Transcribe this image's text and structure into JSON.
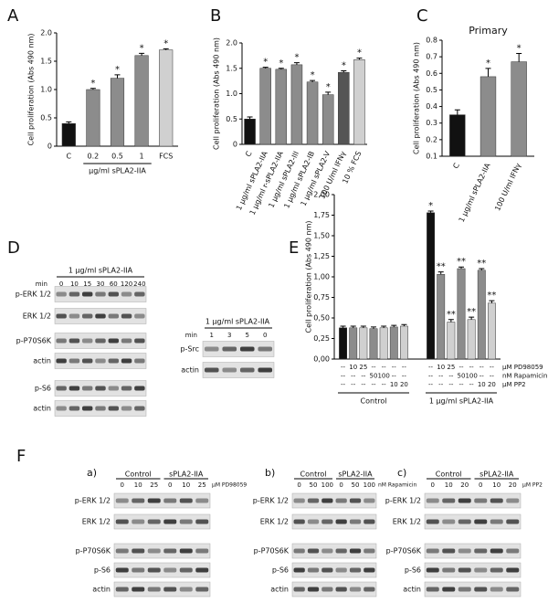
{
  "chart_data": [
    {
      "type": "bar",
      "panel": "A",
      "ylabel": "Cell proliferation (Abs 490 nm)",
      "categories": [
        "C",
        "0.2",
        "0.5",
        "1",
        "FCS"
      ],
      "group_label": "µg/ml sPLA2-IIA",
      "values": [
        0.4,
        1.0,
        1.2,
        1.6,
        1.7
      ],
      "errors": [
        0.03,
        0.02,
        0.06,
        0.04,
        0.02
      ],
      "colors": [
        "#111111",
        "#8c8c8c",
        "#8c8c8c",
        "#8c8c8c",
        "#d0d0d0"
      ],
      "annotations": [
        null,
        "*",
        "*",
        "*",
        "*"
      ],
      "ylim": [
        0,
        2.0
      ],
      "yticks": [
        0,
        0.5,
        {
          "value": 1,
          "label": "1.0"
        },
        1.5,
        {
          "value": 2,
          "label": "2.0"
        }
      ]
    },
    {
      "type": "bar",
      "panel": "B",
      "ylabel": "Cell proliferation (Abs 490 nm)",
      "categories": [
        "C",
        "1 µg/ml sPLA2-IIA",
        "1 µg/ml r-sPLA2-IIA",
        "1 µg/ml sPLA2-III",
        "1 µg/ml sPLA2-IB",
        "1 µg/ml sPLA2-V",
        "100 U/ml IFNγ",
        "10 % FCS"
      ],
      "values": [
        0.5,
        1.5,
        1.48,
        1.57,
        1.23,
        0.98,
        1.42,
        1.67
      ],
      "errors": [
        0.04,
        0.02,
        0.02,
        0.04,
        0.03,
        0.05,
        0.03,
        0.03
      ],
      "colors": [
        "#111111",
        "#8c8c8c",
        "#8c8c8c",
        "#8c8c8c",
        "#8c8c8c",
        "#8c8c8c",
        "#555555",
        "#d0d0d0"
      ],
      "annotations": [
        null,
        "*",
        "*",
        "*",
        "*",
        "*",
        "*",
        "*"
      ],
      "ylim": [
        0,
        2.0
      ],
      "yticks": [
        0,
        0.5,
        {
          "value": 1,
          "label": "1.0"
        },
        1.5,
        {
          "value": 2,
          "label": "2.0"
        }
      ]
    },
    {
      "type": "bar",
      "panel": "C",
      "title": "Primary",
      "ylabel": "Cell proliferation (Abs 490 nm)",
      "categories": [
        "C",
        "1 µg/ml sPLA2-IIA",
        "100 U/ml IFNγ"
      ],
      "values": [
        0.35,
        0.58,
        0.67
      ],
      "errors": [
        0.03,
        0.05,
        0.05
      ],
      "colors": [
        "#111111",
        "#8c8c8c",
        "#8c8c8c"
      ],
      "annotations": [
        null,
        "*",
        "*"
      ],
      "ylim": [
        0.1,
        0.8
      ],
      "yticks": [
        0.1,
        0.2,
        0.3,
        0.4,
        0.5,
        0.6,
        0.7,
        0.8
      ]
    },
    {
      "type": "bar",
      "panel": "E",
      "ylabel": "Cell proliferation (Abs 490 nm)",
      "values": [
        0.38,
        0.38,
        0.38,
        0.37,
        0.38,
        0.39,
        0.4,
        1.78,
        1.03,
        0.45,
        1.1,
        0.48,
        1.08,
        0.68
      ],
      "errors": [
        0.02,
        0.02,
        0.02,
        0.02,
        0.02,
        0.02,
        0.02,
        0.02,
        0.03,
        0.03,
        0.02,
        0.03,
        0.02,
        0.03
      ],
      "colors": [
        "#111111",
        "#8c8c8c",
        "#d0d0d0",
        "#8c8c8c",
        "#d0d0d0",
        "#8c8c8c",
        "#d0d0d0",
        "#111111",
        "#8c8c8c",
        "#d0d0d0",
        "#8c8c8c",
        "#d0d0d0",
        "#8c8c8c",
        "#d0d0d0"
      ],
      "annotations": [
        null,
        null,
        null,
        null,
        null,
        null,
        null,
        "*",
        "**",
        "**",
        "**",
        "**",
        "**",
        "**"
      ],
      "conditions": [
        {
          "name": "µM PD98059",
          "labels": [
            "--",
            10,
            25,
            "--",
            "--",
            "--",
            "--",
            "--",
            10,
            25,
            "--",
            "--",
            "--",
            "--"
          ]
        },
        {
          "name": "nM Rapamicin",
          "labels": [
            "--",
            "--",
            "--",
            50,
            100,
            "--",
            "--",
            "--",
            "--",
            "--",
            50,
            100,
            "--",
            "--"
          ]
        },
        {
          "name": "µM PP2",
          "labels": [
            "--",
            "--",
            "--",
            "--",
            "--",
            10,
            20,
            "--",
            "--",
            "--",
            "--",
            "--",
            10,
            20
          ]
        }
      ],
      "groups": [
        "Control",
        "1 µg/ml sPLA2-IIA"
      ],
      "ylim": [
        0,
        2.0
      ],
      "yticks": [
        {
          "value": 0,
          "label": "0,00"
        },
        {
          "value": 0.25,
          "label": "0,25"
        },
        {
          "value": 0.5,
          "label": "0,50"
        },
        {
          "value": 0.75,
          "label": "0,75"
        },
        {
          "value": 1,
          "label": "1,00"
        },
        {
          "value": 1.25,
          "label": "1,25"
        },
        {
          "value": 1.5,
          "label": "1,50"
        },
        {
          "value": 1.75,
          "label": "1,75"
        },
        {
          "value": 2,
          "label": "2,00"
        }
      ]
    }
  ],
  "blots": {
    "D": {
      "panel": "D",
      "left": {
        "header": "1 µg/ml sPLA2-IIA",
        "unit": "min",
        "lanes": [
          0,
          10,
          15,
          30,
          60,
          120,
          240
        ],
        "rows": [
          "p-ERK 1/2",
          "ERK 1/2",
          "p-P70S6K",
          "actin",
          "p-S6",
          "actin"
        ]
      },
      "right": {
        "header": "1 µg/ml sPLA2-IIA",
        "unit": "min",
        "lanes": [
          1,
          3,
          5,
          0
        ],
        "rows": [
          "p-Src",
          "actin"
        ]
      }
    },
    "F": {
      "panel": "F",
      "subpanels": [
        {
          "tag": "a)",
          "groups": [
            "Control",
            "sPLA2-IIA"
          ],
          "treatment": "µM PD98059",
          "lanes": [
            0,
            10,
            25,
            0,
            10,
            25
          ],
          "rows": [
            "p-ERK 1/2",
            "ERK 1/2",
            "p-P70S6K",
            "p-S6",
            "actin"
          ]
        },
        {
          "tag": "b)",
          "groups": [
            "Control",
            "sPLA2-IIA"
          ],
          "treatment": "nM Rapamicin",
          "lanes": [
            0,
            50,
            100,
            0,
            50,
            100
          ],
          "rows": [
            "p-ERK 1/2",
            "ERK 1/2",
            "p-P70S6K",
            "p-S6",
            "actin"
          ]
        },
        {
          "tag": "c)",
          "groups": [
            "Control",
            "sPLA2-IIA"
          ],
          "treatment": "µM PP2",
          "lanes": [
            0,
            10,
            20,
            0,
            10,
            20
          ],
          "rows": [
            "p-ERK 1/2",
            "ERK 1/2",
            "p-P70S6K",
            "p-S6",
            "actin"
          ]
        }
      ]
    }
  }
}
